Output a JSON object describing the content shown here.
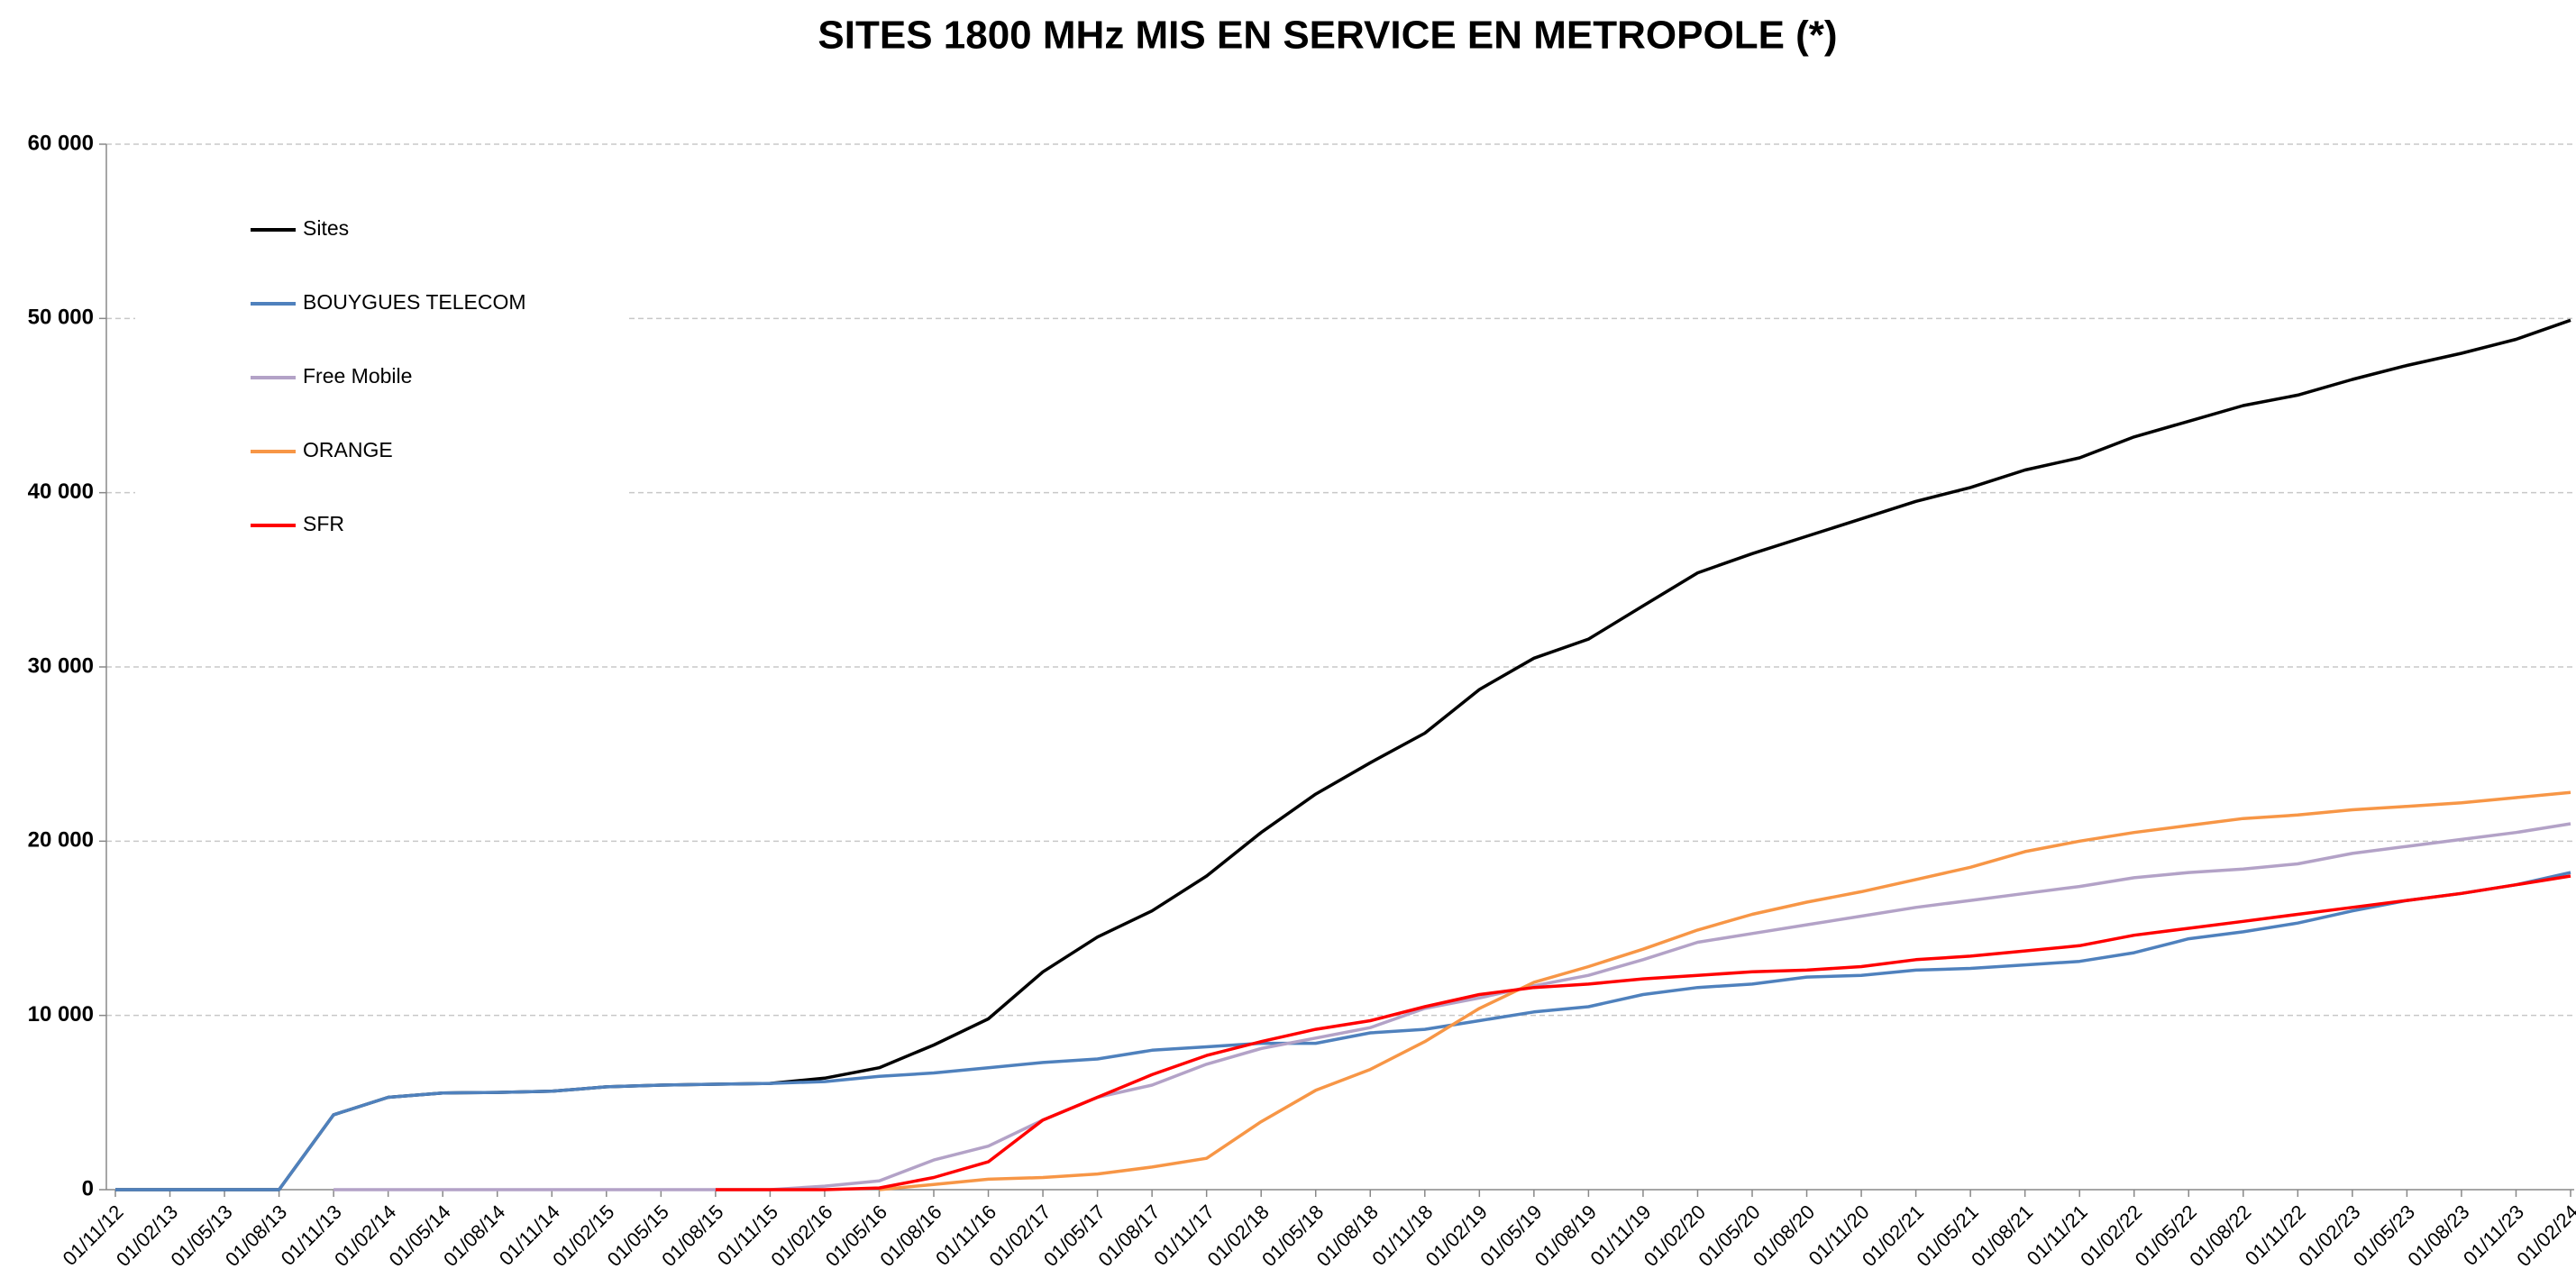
{
  "chart_data": {
    "type": "line",
    "title": "SITES 1800 MHz MIS EN SERVICE EN METROPOLE (*)",
    "categories": [
      "01/11/12",
      "01/02/13",
      "01/05/13",
      "01/08/13",
      "01/11/13",
      "01/02/14",
      "01/05/14",
      "01/08/14",
      "01/11/14",
      "01/02/15",
      "01/05/15",
      "01/08/15",
      "01/11/15",
      "01/02/16",
      "01/05/16",
      "01/08/16",
      "01/11/16",
      "01/02/17",
      "01/05/17",
      "01/08/17",
      "01/11/17",
      "01/02/18",
      "01/05/18",
      "01/08/18",
      "01/11/18",
      "01/02/19",
      "01/05/19",
      "01/08/19",
      "01/11/19",
      "01/02/20",
      "01/05/20",
      "01/08/20",
      "01/11/20",
      "01/02/21",
      "01/05/21",
      "01/08/21",
      "01/11/21",
      "01/02/22",
      "01/05/22",
      "01/08/22",
      "01/11/22",
      "01/02/23",
      "01/05/23",
      "01/08/23",
      "01/11/23",
      "01/02/24"
    ],
    "series": [
      {
        "name": "Sites",
        "color": "#000000",
        "values": [
          0,
          0,
          0,
          0,
          4300,
          5300,
          5550,
          5580,
          5650,
          5900,
          6000,
          6050,
          6100,
          6400,
          7000,
          8300,
          9800,
          12500,
          14500,
          16000,
          18000,
          20500,
          22700,
          24500,
          26200,
          28700,
          30500,
          31600,
          33500,
          35400,
          36500,
          37500,
          38500,
          39500,
          40300,
          41300,
          42000,
          43200,
          44100,
          45000,
          45600,
          46500,
          47300,
          48000,
          48800,
          49900
        ]
      },
      {
        "name": "BOUYGUES TELECOM",
        "color": "#4f81bd",
        "values": [
          0,
          0,
          0,
          0,
          4300,
          5300,
          5550,
          5580,
          5650,
          5900,
          6000,
          6050,
          6100,
          6200,
          6500,
          6700,
          7000,
          7300,
          7500,
          8000,
          8200,
          8400,
          8400,
          9000,
          9200,
          9700,
          10200,
          10500,
          11200,
          11600,
          11800,
          12200,
          12300,
          12600,
          12700,
          12900,
          13100,
          13600,
          14400,
          14800,
          15300,
          16000,
          16600,
          17000,
          17500,
          18200
        ]
      },
      {
        "name": "Free Mobile",
        "color": "#b3a2c7",
        "values": [
          null,
          null,
          null,
          null,
          0,
          0,
          0,
          0,
          0,
          0,
          0,
          0,
          0,
          200,
          500,
          1700,
          2500,
          4000,
          5300,
          6000,
          7200,
          8100,
          8700,
          9300,
          10400,
          11000,
          11700,
          12300,
          13200,
          14200,
          14700,
          15200,
          15700,
          16200,
          16600,
          17000,
          17400,
          17900,
          18200,
          18400,
          18700,
          19300,
          19700,
          20100,
          20500,
          21000
        ]
      },
      {
        "name": "ORANGE",
        "color": "#f79646",
        "values": [
          null,
          null,
          null,
          null,
          null,
          null,
          null,
          null,
          null,
          null,
          null,
          null,
          null,
          null,
          0,
          300,
          600,
          700,
          900,
          1300,
          1800,
          3900,
          5700,
          6900,
          8500,
          10400,
          11900,
          12800,
          13800,
          14900,
          15800,
          16500,
          17100,
          17800,
          18500,
          19400,
          20000,
          20500,
          20900,
          21300,
          21500,
          21800,
          22000,
          22200,
          22500,
          22800
        ]
      },
      {
        "name": "SFR",
        "color": "#ff0000",
        "values": [
          null,
          null,
          null,
          null,
          null,
          null,
          null,
          null,
          null,
          null,
          null,
          0,
          0,
          0,
          100,
          700,
          1600,
          4000,
          5300,
          6600,
          7700,
          8500,
          9200,
          9700,
          10500,
          11200,
          11600,
          11800,
          12100,
          12300,
          12500,
          12600,
          12800,
          13200,
          13400,
          13700,
          14000,
          14600,
          15000,
          15400,
          15800,
          16200,
          16600,
          17000,
          17500,
          18000
        ]
      }
    ],
    "ylim": [
      0,
      60000
    ],
    "yticks": [
      {
        "value": 0,
        "label": "0"
      },
      {
        "value": 10000,
        "label": "10 000"
      },
      {
        "value": 20000,
        "label": "20 000"
      },
      {
        "value": 30000,
        "label": "30 000"
      },
      {
        "value": 40000,
        "label": "40 000"
      },
      {
        "value": 50000,
        "label": "50 000"
      },
      {
        "value": 60000,
        "label": "60 000"
      }
    ],
    "grid": true,
    "legend": "upper left"
  }
}
